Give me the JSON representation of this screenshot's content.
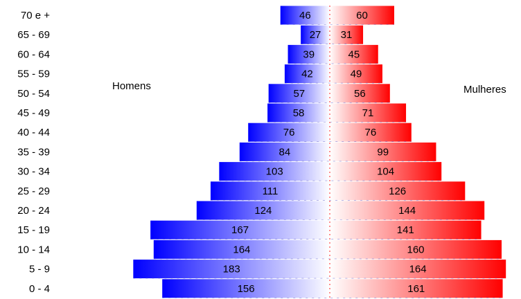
{
  "chart_data": {
    "type": "bar",
    "orientation": "horizontal-population-pyramid",
    "categories": [
      "70 e +",
      "65 - 69",
      "60 - 64",
      "55 - 59",
      "50 - 54",
      "45 - 49",
      "40 - 44",
      "35 - 39",
      "30 - 34",
      "25 - 29",
      "20 - 24",
      "15 - 19",
      "10 - 14",
      "5 - 9",
      "0 - 4"
    ],
    "series": [
      {
        "name": "Homens",
        "color": "#0000ff",
        "values": [
          46,
          27,
          39,
          42,
          57,
          58,
          76,
          84,
          103,
          111,
          124,
          167,
          164,
          183,
          156
        ]
      },
      {
        "name": "Mulheres",
        "color": "#ff0000",
        "values": [
          60,
          31,
          45,
          49,
          56,
          71,
          76,
          99,
          104,
          126,
          144,
          141,
          160,
          164,
          161
        ]
      }
    ],
    "xlim": [
      0,
      190
    ],
    "grid": false,
    "legend": "side labels"
  }
}
